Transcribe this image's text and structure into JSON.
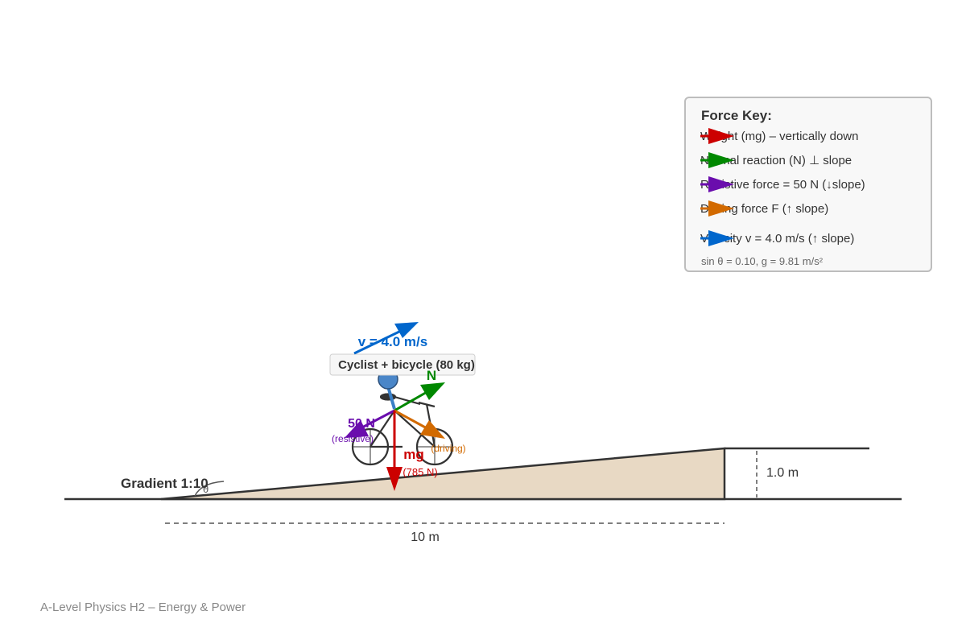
{
  "diagram": {
    "gradient_label": "Gradient 1:10",
    "angle_symbol": "θ",
    "height_label": "1.0 m",
    "length_label": "10 m",
    "object_label": "Cyclist + bicycle (80 kg)",
    "velocity_label": "v = 4.0 m/s",
    "normal_label": "N",
    "resistive_label": "50 N",
    "resistive_sub": "(resistive)",
    "weight_label": "mg",
    "weight_sub": "(785 N)",
    "driving_sub": "(driving)"
  },
  "legend": {
    "title": "Force Key:",
    "items": [
      {
        "label": "Weight (mg) – vertically down",
        "color": "#cc0000",
        "icon": "red-arrow-icon"
      },
      {
        "label": "Normal reaction (N) ⊥ slope",
        "color": "#008800",
        "icon": "green-arrow-icon"
      },
      {
        "label": "Resistive force = 50 N (↓slope)",
        "color": "#6a0dad",
        "icon": "purple-arrow-icon"
      },
      {
        "label": "Driving force F (↑ slope)",
        "color": "#d26a00",
        "icon": "orange-arrow-icon"
      },
      {
        "label": "Velocity v = 4.0 m/s (↑ slope)",
        "color": "#0066cc",
        "icon": "blue-arrow-icon"
      }
    ],
    "note": "sin θ = 0.10, g = 9.81 m/s²"
  },
  "footer": "A-Level Physics H2 – Energy & Power"
}
